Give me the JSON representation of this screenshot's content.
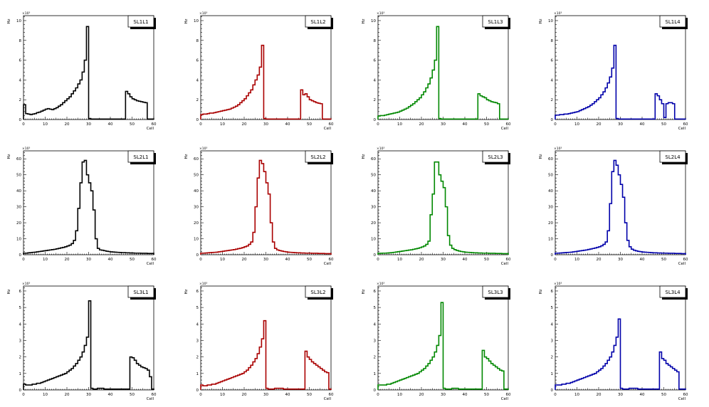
{
  "chart_data": [
    {
      "type": "histogram",
      "title": "SL1L1",
      "ylabel": "Hz",
      "xlabel": "Cell",
      "exponent": "×10³",
      "xlim": [
        0,
        60
      ],
      "ylim": [
        0,
        10.5
      ],
      "xticks": [
        "0",
        "10",
        "20",
        "30",
        "40",
        "50",
        "60"
      ],
      "yticks": [
        "0",
        "2",
        "4",
        "6",
        "8",
        "10"
      ],
      "color": "#000000",
      "values": [
        1.5,
        0.6,
        0.55,
        0.5,
        0.55,
        0.6,
        0.7,
        0.75,
        0.85,
        0.95,
        1.05,
        1.1,
        1.05,
        1.0,
        1.1,
        1.2,
        1.35,
        1.5,
        1.7,
        1.9,
        2.1,
        2.3,
        2.6,
        2.9,
        3.2,
        3.6,
        4.0,
        4.8,
        6.0,
        9.4,
        0.1,
        0.05,
        0.05,
        0.05,
        0.05,
        0.05,
        0.05,
        0.05,
        0.05,
        0.05,
        0.05,
        0.05,
        0.05,
        0.05,
        0.05,
        0.05,
        0.05,
        2.85,
        2.6,
        2.3,
        2.1,
        2.0,
        1.9,
        1.85,
        1.8,
        1.75,
        1.7,
        0.05,
        0.05,
        0.05
      ]
    },
    {
      "type": "histogram",
      "title": "SL1L2",
      "ylabel": "Hz",
      "xlabel": "Cell",
      "exponent": "×10³",
      "xlim": [
        0,
        60
      ],
      "ylim": [
        0,
        10.5
      ],
      "xticks": [
        "0",
        "10",
        "20",
        "30",
        "40",
        "50",
        "60"
      ],
      "yticks": [
        "0",
        "2",
        "4",
        "6",
        "8",
        "10"
      ],
      "color": "#aa0000",
      "values": [
        0.5,
        0.55,
        0.55,
        0.6,
        0.65,
        0.65,
        0.7,
        0.75,
        0.8,
        0.85,
        0.9,
        0.95,
        1.0,
        1.05,
        1.15,
        1.25,
        1.35,
        1.5,
        1.7,
        1.9,
        2.1,
        2.4,
        2.7,
        3.0,
        3.5,
        4.0,
        4.5,
        5.3,
        7.5,
        0.1,
        0.05,
        0.05,
        0.05,
        0.05,
        0.05,
        0.05,
        0.05,
        0.05,
        0.05,
        0.05,
        0.05,
        0.05,
        0.05,
        0.05,
        0.05,
        0.05,
        3.0,
        2.5,
        2.6,
        2.3,
        2.0,
        1.9,
        1.8,
        1.7,
        1.65,
        1.6,
        0.05,
        0.05,
        0.05,
        0.05
      ]
    },
    {
      "type": "histogram",
      "title": "SL1L3",
      "ylabel": "Hz",
      "xlabel": "Cell",
      "exponent": "×10³",
      "xlim": [
        0,
        60
      ],
      "ylim": [
        0,
        10.5
      ],
      "xticks": [
        "0",
        "10",
        "20",
        "30",
        "40",
        "50",
        "60"
      ],
      "yticks": [
        "0",
        "2",
        "4",
        "6",
        "8",
        "10"
      ],
      "color": "#008800",
      "values": [
        0.35,
        0.4,
        0.4,
        0.45,
        0.5,
        0.55,
        0.6,
        0.65,
        0.7,
        0.75,
        0.85,
        0.95,
        1.05,
        1.15,
        1.3,
        1.45,
        1.6,
        1.8,
        2.0,
        2.2,
        2.5,
        2.8,
        3.2,
        3.6,
        4.2,
        5.0,
        6.0,
        9.4,
        0.1,
        0.05,
        0.05,
        0.05,
        0.05,
        0.05,
        0.05,
        0.05,
        0.05,
        0.05,
        0.05,
        0.05,
        0.05,
        0.05,
        0.05,
        0.05,
        0.05,
        0.05,
        2.6,
        2.4,
        2.3,
        2.2,
        2.0,
        1.9,
        1.8,
        1.75,
        1.7,
        1.6,
        0.05,
        0.05,
        0.05,
        0.05
      ]
    },
    {
      "type": "histogram",
      "title": "SL1L4",
      "ylabel": "Hz",
      "xlabel": "Cell",
      "exponent": "×10³",
      "xlim": [
        0,
        60
      ],
      "ylim": [
        0,
        10.5
      ],
      "xticks": [
        "0",
        "10",
        "20",
        "30",
        "40",
        "50",
        "60"
      ],
      "yticks": [
        "0",
        "2",
        "4",
        "6",
        "8",
        "10"
      ],
      "color": "#0000aa",
      "values": [
        0.45,
        0.45,
        0.5,
        0.5,
        0.55,
        0.55,
        0.6,
        0.65,
        0.7,
        0.75,
        0.8,
        0.9,
        1.0,
        1.1,
        1.2,
        1.3,
        1.45,
        1.6,
        1.8,
        2.0,
        2.2,
        2.5,
        2.8,
        3.2,
        3.7,
        4.3,
        5.2,
        7.5,
        0.1,
        0.05,
        0.05,
        0.05,
        0.05,
        0.05,
        0.05,
        0.05,
        0.05,
        0.05,
        0.05,
        0.05,
        0.05,
        0.05,
        0.05,
        0.05,
        0.05,
        0.05,
        2.6,
        2.4,
        2.0,
        1.6,
        0.2,
        1.6,
        1.7,
        1.7,
        1.6,
        0.05,
        0.05,
        0.05,
        0.05,
        0.05
      ]
    },
    {
      "type": "histogram",
      "title": "SL2L1",
      "ylabel": "Hz",
      "xlabel": "Cell",
      "exponent": "×10³",
      "xlim": [
        0,
        60
      ],
      "ylim": [
        0,
        65
      ],
      "xticks": [
        "0",
        "10",
        "20",
        "30",
        "40",
        "50",
        "60"
      ],
      "yticks": [
        "0",
        "10",
        "20",
        "30",
        "40",
        "50",
        "60"
      ],
      "color": "#000000",
      "values": [
        1.0,
        1.0,
        1.2,
        1.3,
        1.5,
        1.6,
        1.8,
        2.0,
        2.2,
        2.4,
        2.6,
        2.8,
        3.0,
        3.2,
        3.4,
        3.7,
        4.0,
        4.3,
        4.6,
        5.0,
        5.5,
        6.0,
        7.0,
        9.0,
        15,
        29,
        45,
        58,
        59,
        50,
        45,
        40,
        28,
        10,
        4,
        3,
        2.8,
        2.5,
        2.2,
        2.0,
        1.8,
        1.7,
        1.6,
        1.5,
        1.4,
        1.3,
        1.3,
        1.2,
        1.2,
        1.1,
        1.1,
        1.0,
        1.0,
        1.0,
        0.9,
        0.9,
        0.9,
        0.8,
        0.8,
        0.8
      ]
    },
    {
      "type": "histogram",
      "title": "SL2L2",
      "ylabel": "Hz",
      "xlabel": "Cell",
      "exponent": "×10³",
      "xlim": [
        0,
        60
      ],
      "ylim": [
        0,
        65
      ],
      "xticks": [
        "0",
        "10",
        "20",
        "30",
        "40",
        "50",
        "60"
      ],
      "yticks": [
        "0",
        "10",
        "20",
        "30",
        "40",
        "50",
        "60"
      ],
      "color": "#aa0000",
      "values": [
        1.0,
        1.0,
        1.1,
        1.2,
        1.3,
        1.4,
        1.5,
        1.6,
        1.8,
        2.0,
        2.2,
        2.4,
        2.6,
        2.8,
        3.0,
        3.2,
        3.5,
        3.8,
        4.1,
        4.5,
        5.0,
        5.5,
        6.5,
        8.0,
        14,
        30,
        48,
        59,
        57,
        52,
        45,
        38,
        20,
        8,
        4,
        3,
        2.6,
        2.3,
        2.0,
        1.8,
        1.6,
        1.5,
        1.4,
        1.3,
        1.2,
        1.2,
        1.1,
        1.1,
        1.0,
        1.0,
        1.0,
        0.9,
        0.9,
        0.9,
        0.8,
        0.8,
        0.8,
        0.7,
        0.7,
        0.7
      ]
    },
    {
      "type": "histogram",
      "title": "SL2L3",
      "ylabel": "Hz",
      "xlabel": "Cell",
      "exponent": "×10³",
      "xlim": [
        0,
        60
      ],
      "ylim": [
        0,
        65
      ],
      "xticks": [
        "0",
        "10",
        "20",
        "30",
        "40",
        "50",
        "60"
      ],
      "yticks": [
        "0",
        "10",
        "20",
        "30",
        "40",
        "50",
        "60"
      ],
      "color": "#008800",
      "values": [
        0.9,
        0.9,
        1.0,
        1.0,
        1.1,
        1.2,
        1.3,
        1.5,
        1.7,
        1.9,
        2.1,
        2.3,
        2.5,
        2.7,
        2.9,
        3.1,
        3.4,
        3.7,
        4.0,
        4.4,
        4.9,
        5.5,
        6.5,
        8.5,
        25,
        38,
        58,
        58,
        50,
        46,
        42,
        30,
        12,
        6,
        4,
        3.2,
        2.7,
        2.3,
        2.0,
        1.8,
        1.6,
        1.5,
        1.4,
        1.3,
        1.2,
        1.2,
        1.1,
        1.1,
        1.0,
        1.0,
        1.0,
        0.9,
        0.9,
        0.9,
        0.8,
        0.8,
        0.8,
        0.7,
        0.7,
        0.7
      ]
    },
    {
      "type": "histogram",
      "title": "SL2L4",
      "ylabel": "Hz",
      "xlabel": "Cell",
      "exponent": "×10³",
      "xlim": [
        0,
        60
      ],
      "ylim": [
        0,
        65
      ],
      "xticks": [
        "0",
        "10",
        "20",
        "30",
        "40",
        "50",
        "60"
      ],
      "yticks": [
        "0",
        "10",
        "20",
        "30",
        "40",
        "50",
        "60"
      ],
      "color": "#0000aa",
      "values": [
        1.0,
        1.0,
        1.1,
        1.2,
        1.3,
        1.4,
        1.5,
        1.6,
        1.8,
        2.0,
        2.2,
        2.4,
        2.6,
        2.8,
        3.0,
        3.3,
        3.6,
        3.9,
        4.2,
        4.6,
        5.0,
        5.6,
        6.5,
        8.0,
        15,
        32,
        52,
        59,
        56,
        50,
        44,
        36,
        20,
        9,
        5,
        3.5,
        2.8,
        2.4,
        2.1,
        1.9,
        1.7,
        1.6,
        1.5,
        1.4,
        1.3,
        1.2,
        1.2,
        1.1,
        1.1,
        1.0,
        1.0,
        1.0,
        0.9,
        0.9,
        0.9,
        0.8,
        0.8,
        0.8,
        0.7,
        0.7
      ]
    },
    {
      "type": "histogram",
      "title": "SL3L1",
      "ylabel": "Hz",
      "xlabel": "Cell",
      "exponent": "×10³",
      "xlim": [
        0,
        60
      ],
      "ylim": [
        0,
        6.3
      ],
      "xticks": [
        "0",
        "10",
        "20",
        "30",
        "40",
        "50",
        "60"
      ],
      "yticks": [
        "0",
        "1",
        "2",
        "3",
        "4",
        "5",
        "6"
      ],
      "color": "#000000",
      "values": [
        0.35,
        0.3,
        0.3,
        0.3,
        0.35,
        0.35,
        0.4,
        0.4,
        0.45,
        0.5,
        0.55,
        0.6,
        0.65,
        0.7,
        0.75,
        0.8,
        0.85,
        0.9,
        0.95,
        1.0,
        1.1,
        1.2,
        1.3,
        1.45,
        1.6,
        1.8,
        2.0,
        2.3,
        2.7,
        3.2,
        5.4,
        0.1,
        0.05,
        0.05,
        0.1,
        0.1,
        0.1,
        0.05,
        0.05,
        0.05,
        0.05,
        0.05,
        0.05,
        0.05,
        0.05,
        0.05,
        0.05,
        0.05,
        0.05,
        2.0,
        1.95,
        1.8,
        1.6,
        1.5,
        1.4,
        1.35,
        1.3,
        1.2,
        0.8,
        0.05
      ]
    },
    {
      "type": "histogram",
      "title": "SL3L2",
      "ylabel": "Hz",
      "xlabel": "Cell",
      "exponent": "×10³",
      "xlim": [
        0,
        60
      ],
      "ylim": [
        0,
        6.3
      ],
      "xticks": [
        "0",
        "10",
        "20",
        "30",
        "40",
        "50",
        "60"
      ],
      "yticks": [
        "0",
        "1",
        "2",
        "3",
        "4",
        "5",
        "6"
      ],
      "color": "#aa0000",
      "values": [
        0.3,
        0.25,
        0.25,
        0.3,
        0.3,
        0.35,
        0.35,
        0.4,
        0.45,
        0.5,
        0.55,
        0.6,
        0.65,
        0.7,
        0.75,
        0.8,
        0.85,
        0.9,
        0.95,
        1.0,
        1.1,
        1.2,
        1.35,
        1.5,
        1.7,
        1.9,
        2.2,
        2.6,
        3.1,
        4.2,
        0.1,
        0.05,
        0.05,
        0.05,
        0.1,
        0.1,
        0.1,
        0.1,
        0.05,
        0.05,
        0.05,
        0.05,
        0.05,
        0.05,
        0.05,
        0.05,
        0.05,
        0.05,
        2.35,
        2.0,
        1.85,
        1.7,
        1.6,
        1.5,
        1.4,
        1.3,
        1.2,
        1.1,
        1.05,
        0.05
      ]
    },
    {
      "type": "histogram",
      "title": "SL3L3",
      "ylabel": "Hz",
      "xlabel": "Cell",
      "exponent": "×10³",
      "xlim": [
        0,
        60
      ],
      "ylim": [
        0,
        6.3
      ],
      "xticks": [
        "0",
        "10",
        "20",
        "30",
        "40",
        "50",
        "60"
      ],
      "yticks": [
        "0",
        "1",
        "2",
        "3",
        "4",
        "5",
        "6"
      ],
      "color": "#008800",
      "values": [
        0.3,
        0.3,
        0.3,
        0.3,
        0.35,
        0.35,
        0.4,
        0.45,
        0.5,
        0.55,
        0.6,
        0.65,
        0.7,
        0.75,
        0.8,
        0.85,
        0.9,
        0.95,
        1.0,
        1.1,
        1.2,
        1.3,
        1.45,
        1.6,
        1.8,
        2.0,
        2.3,
        2.7,
        3.3,
        5.3,
        0.1,
        0.05,
        0.05,
        0.05,
        0.1,
        0.1,
        0.1,
        0.05,
        0.05,
        0.05,
        0.05,
        0.05,
        0.05,
        0.05,
        0.05,
        0.05,
        0.05,
        0.05,
        2.4,
        2.0,
        1.9,
        1.75,
        1.6,
        1.5,
        1.4,
        1.3,
        1.2,
        1.15,
        0.05,
        0.05
      ]
    },
    {
      "type": "histogram",
      "title": "SL3L4",
      "ylabel": "Hz",
      "xlabel": "Cell",
      "exponent": "×10³",
      "xlim": [
        0,
        60
      ],
      "ylim": [
        0,
        6.3
      ],
      "xticks": [
        "0",
        "10",
        "20",
        "30",
        "40",
        "50",
        "60"
      ],
      "yticks": [
        "0",
        "1",
        "2",
        "3",
        "4",
        "5",
        "6"
      ],
      "color": "#0000aa",
      "values": [
        0.3,
        0.3,
        0.3,
        0.35,
        0.35,
        0.4,
        0.4,
        0.45,
        0.5,
        0.55,
        0.6,
        0.65,
        0.7,
        0.75,
        0.8,
        0.85,
        0.9,
        0.95,
        1.0,
        1.1,
        1.2,
        1.3,
        1.45,
        1.6,
        1.8,
        2.0,
        2.3,
        2.7,
        3.2,
        4.3,
        0.1,
        0.05,
        0.05,
        0.05,
        0.1,
        0.1,
        0.1,
        0.1,
        0.05,
        0.05,
        0.05,
        0.05,
        0.05,
        0.05,
        0.05,
        0.05,
        0.05,
        0.05,
        2.3,
        1.9,
        1.8,
        1.6,
        1.5,
        1.4,
        1.3,
        1.2,
        1.1,
        0.05,
        0.05,
        0.05
      ]
    }
  ]
}
